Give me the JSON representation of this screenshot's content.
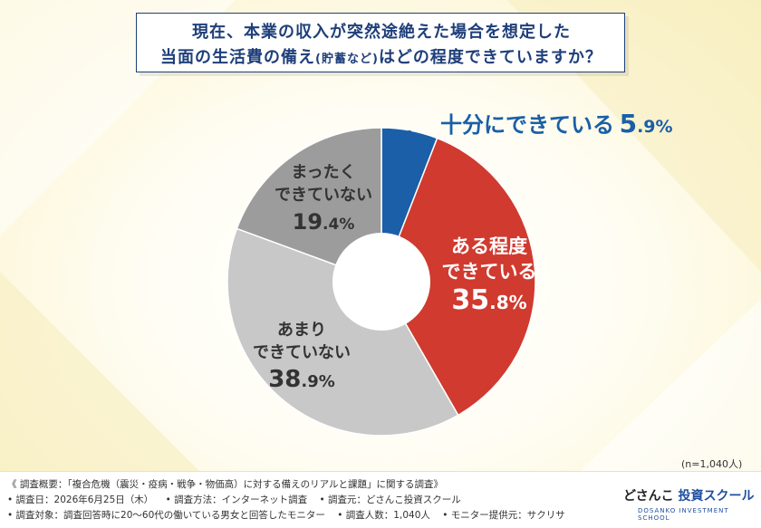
{
  "title": {
    "line1": "現在、本業の収入が突然途絶えた場合を想定した",
    "line2_main": "当面の生活費の備え",
    "line2_paren": "(貯蓄など)",
    "line2_tail": "はどの程度できていますか？"
  },
  "chart_data": {
    "type": "pie",
    "donut": true,
    "unit": "%",
    "slices": [
      {
        "label": "十分にできている",
        "value": 5.9,
        "display": "5.9%",
        "color": "#1a5fa8"
      },
      {
        "label": "ある程度できている",
        "value": 35.8,
        "display": "35.8%",
        "color": "#d03a2f"
      },
      {
        "label": "あまりできていない",
        "value": 38.9,
        "display": "38.9%",
        "color": "#c8c8c8"
      },
      {
        "label": "まったくできていない",
        "value": 19.4,
        "display": "19.4%",
        "color": "#9c9c9c"
      }
    ],
    "labels": {
      "s0": {
        "text": "十分にできている",
        "pct_int": "5",
        "pct_dec": ".9%"
      },
      "s1": {
        "line1": "ある程度",
        "line2": "できている",
        "pct_int": "35",
        "pct_dec": ".8%"
      },
      "s2": {
        "line1": "あまり",
        "line2": "できていない",
        "pct_int": "38",
        "pct_dec": ".9%"
      },
      "s3": {
        "line1": "まったく",
        "line2": "できていない",
        "pct_int": "19",
        "pct_dec": ".4%"
      }
    },
    "sample_note": "(n=1,040人)"
  },
  "footer": {
    "line1": "《 調査概要：「複合危機（震災・疫病・戦争・物価高）に対する備えのリアルと課題」に関する調査》",
    "line2": [
      "• 調査日：2026年6月25日（木）",
      "• 調査方法：インターネット調査",
      "• 調査元：どさんこ投資スクール"
    ],
    "line3": [
      "• 調査対象：調査回答時に20～60代の働いている男女と回答したモニター",
      "• 調査人数：1,040人",
      "• モニター提供元：サクリサ"
    ],
    "logo_prefix": "どさんこ",
    "logo_accent": "投資スクール",
    "logo_sub": "DOSANKO INVESTMENT SCHOOL"
  }
}
